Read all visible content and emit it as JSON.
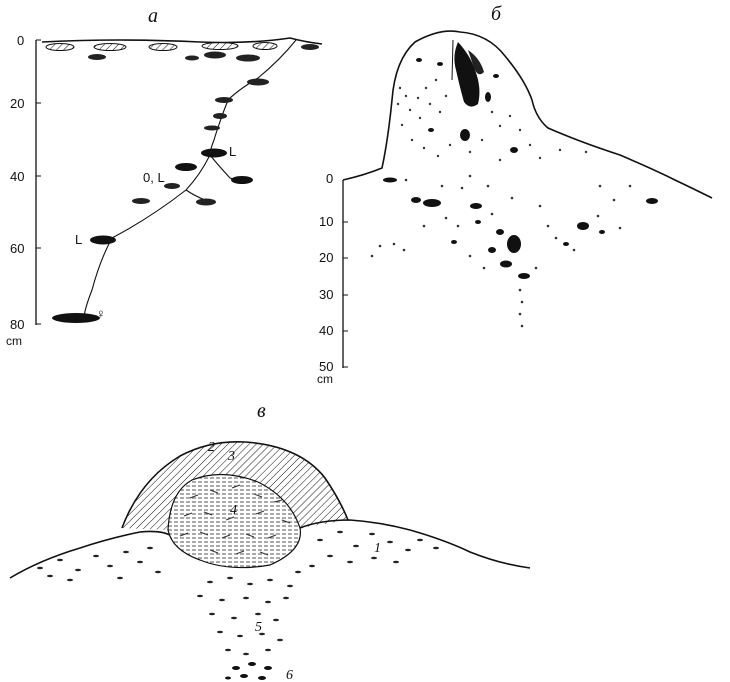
{
  "panels": {
    "a": {
      "title": "а",
      "axis_ticks": [
        "0",
        "20",
        "40",
        "60",
        "80"
      ],
      "axis_unit": "cm",
      "markers": {
        "l_upper": "L",
        "ol": "0, L",
        "l_lower": "L",
        "female": "♀"
      }
    },
    "b": {
      "title": "б",
      "axis_ticks": [
        "0",
        "10",
        "20",
        "30",
        "40",
        "50"
      ],
      "axis_unit": "cm"
    },
    "c": {
      "title": "в",
      "labels": [
        "1",
        "2",
        "3",
        "4",
        "5",
        "6"
      ]
    }
  }
}
